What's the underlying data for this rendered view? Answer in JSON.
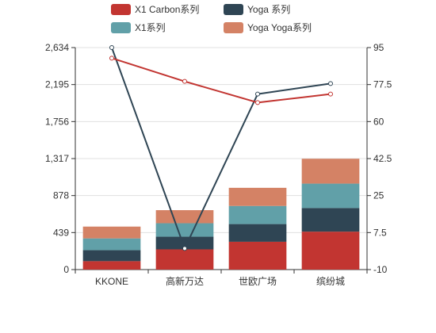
{
  "chart_data": {
    "type": "bar",
    "stacked": true,
    "categories": [
      "KKONE",
      "高新万达",
      "世欧广场",
      "缤纷城"
    ],
    "series": [
      {
        "name": "X1 Carbon系列",
        "type": "bar",
        "axis": "left",
        "color": "#c23531",
        "values": [
          100,
          240,
          330,
          450
        ]
      },
      {
        "name": "Yoga 系列",
        "type": "bar",
        "axis": "left",
        "color": "#2f4554",
        "values": [
          130,
          150,
          210,
          280
        ]
      },
      {
        "name": "X1系列",
        "type": "bar",
        "axis": "left",
        "color": "#61a0a8",
        "values": [
          140,
          160,
          215,
          290
        ]
      },
      {
        "name": "Yoga Yoga系列",
        "type": "bar",
        "axis": "left",
        "color": "#d48265",
        "values": [
          140,
          155,
          215,
          295
        ]
      },
      {
        "name": "",
        "type": "line",
        "axis": "right",
        "color": "#2f4554",
        "values": [
          95,
          0,
          73,
          78
        ]
      },
      {
        "name": "",
        "type": "line",
        "axis": "right",
        "color": "#c23531",
        "values": [
          90,
          79,
          69,
          73
        ]
      }
    ],
    "legend": {
      "placement": "top",
      "entries": [
        {
          "name": "X1 Carbon系列",
          "color": "#c23531"
        },
        {
          "name": "Yoga 系列",
          "color": "#2f4554"
        },
        {
          "name": "X1系列",
          "color": "#61a0a8"
        },
        {
          "name": "Yoga Yoga系列",
          "color": "#d48265"
        }
      ]
    },
    "y_left": {
      "ylim": [
        0,
        2634
      ],
      "ticks": [
        0,
        439,
        878,
        1317,
        1756,
        2195,
        2634
      ],
      "tick_labels": [
        "0",
        "439",
        "878",
        "1,317",
        "1,756",
        "2,195",
        "2,634"
      ]
    },
    "y_right": {
      "ylim": [
        -10,
        95
      ],
      "ticks": [
        -10,
        7.5,
        25,
        42.5,
        60,
        77.5,
        95
      ],
      "tick_labels": [
        "-10",
        "7.5",
        "25",
        "42.5",
        "60",
        "77.5",
        "95"
      ]
    },
    "grid": true,
    "title": "",
    "xlabel": "",
    "ylabel": ""
  }
}
